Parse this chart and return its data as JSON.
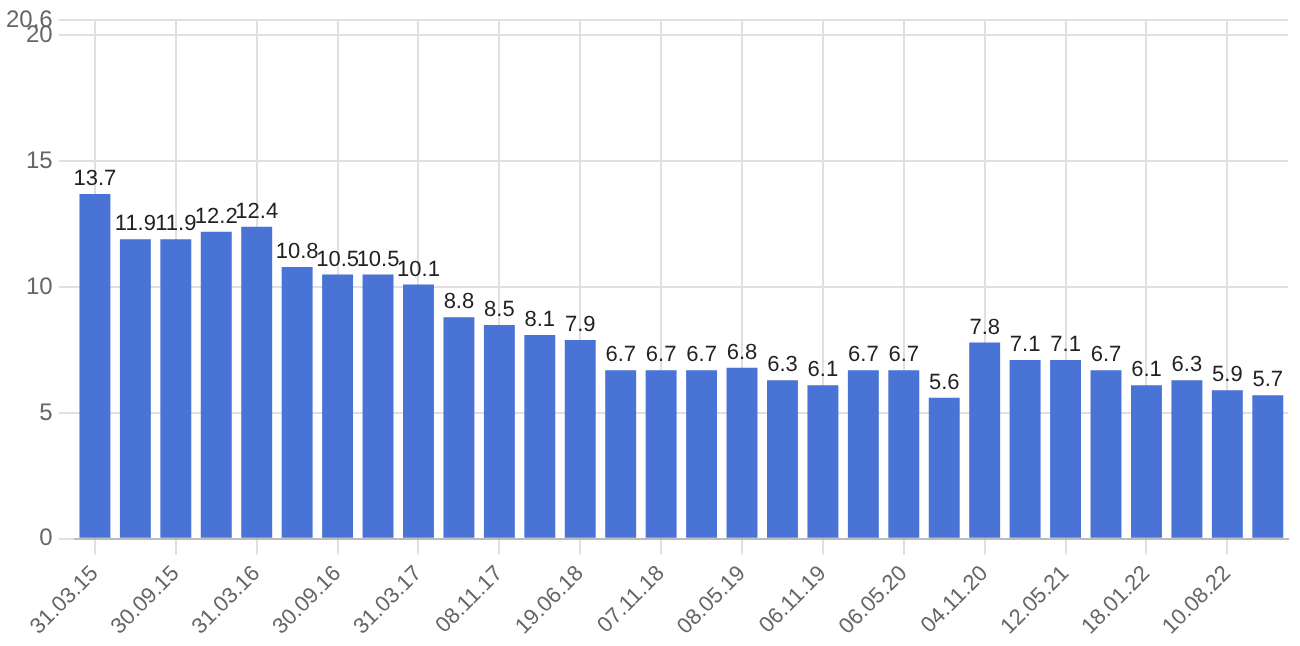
{
  "chart_data": {
    "type": "bar",
    "categories": [
      "31.03.15",
      null,
      "30.09.15",
      null,
      "31.03.16",
      null,
      "30.09.16",
      null,
      "31.03.17",
      null,
      "08.11.17",
      null,
      "19.06.18",
      null,
      "07.11.18",
      null,
      "08.05.19",
      null,
      "06.11.19",
      null,
      "06.05.20",
      null,
      "04.11.20",
      null,
      "12.05.21",
      null,
      "18.01.22",
      null,
      "10.08.22",
      null
    ],
    "values": [
      13.7,
      11.9,
      11.9,
      12.2,
      12.4,
      10.8,
      10.5,
      10.5,
      10.1,
      8.8,
      8.5,
      8.1,
      7.9,
      6.7,
      6.7,
      6.7,
      6.8,
      6.3,
      6.1,
      6.7,
      6.7,
      5.6,
      7.8,
      7.1,
      7.1,
      6.7,
      6.1,
      6.3,
      5.9,
      5.7
    ],
    "color": "#4a73d6",
    "ylim": [
      0,
      20.6
    ],
    "yticks": [
      0,
      5,
      10,
      15,
      20,
      {
        "value": 20.6,
        "label": "20.6"
      }
    ],
    "grid": true,
    "data_labels": true
  }
}
